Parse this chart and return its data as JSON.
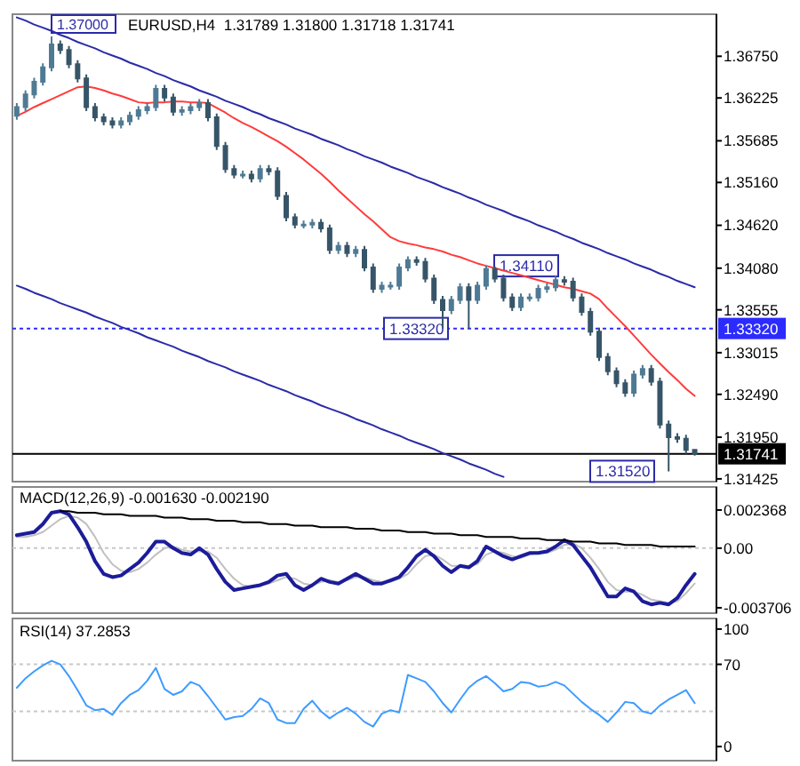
{
  "chart_data": [
    {
      "type": "candlestick",
      "title": "EURUSD,H4  1.31789 1.31800 1.31718 1.31741",
      "tick_labels": "y",
      "colors": [
        "#4f7a94",
        "#4f7a94",
        "#4f7a94",
        "#4f7a94",
        "#4f7a94",
        "#375568",
        "#375568",
        "#375568",
        "#375568",
        "#375568",
        "#375568",
        "#375568",
        "#4f7a94",
        "#4f7a94",
        "#4f7a94",
        "#4f7a94",
        "#4f7a94",
        "#375568",
        "#375568",
        "#4f7a94",
        "#4f7a94",
        "#4f7a94",
        "#375568",
        "#375568",
        "#375568",
        "#375568",
        "#4f7a94",
        "#375568",
        "#4f7a94",
        "#375568",
        "#375568",
        "#375568",
        "#375568",
        "#4f7a94",
        "#4f7a94",
        "#375568",
        "#375568",
        "#4f7a94",
        "#375568",
        "#4f7a94",
        "#375568",
        "#375568",
        "#4f7a94",
        "#4f7a94",
        "#4f7a94",
        "#4f7a94",
        "#375568",
        "#375568",
        "#375568",
        "#375568",
        "#4f7a94",
        "#4f7a94",
        "#375568",
        "#4f7a94",
        "#4f7a94",
        "#375568",
        "#375568",
        "#375568",
        "#4f7a94",
        "#4f7a94",
        "#4f7a94",
        "#4f7a94",
        "#4f7a94",
        "#375568",
        "#375568",
        "#375568",
        "#375568",
        "#375568",
        "#375568",
        "#375568",
        "#375568",
        "#4f7a94",
        "#4f7a94",
        "#375568",
        "#375568",
        "#375568",
        "#375568",
        "#375568",
        "#375568"
      ],
      "categories": [
        null,
        null,
        null,
        null,
        null,
        null,
        null,
        null,
        null,
        null,
        null,
        null,
        null,
        null,
        null,
        null,
        null,
        null,
        null,
        null,
        null,
        null,
        null,
        null,
        null,
        null,
        null,
        null,
        null,
        null,
        null,
        null,
        null,
        null,
        null,
        null,
        null,
        null,
        null,
        null,
        null,
        null,
        null,
        null,
        null,
        null,
        null,
        null,
        null,
        null,
        null,
        null,
        null,
        null,
        null,
        null,
        null,
        null,
        null,
        null,
        null,
        null,
        null,
        null,
        null,
        null,
        null,
        null,
        null,
        null,
        null,
        null,
        null,
        null,
        null,
        null,
        null,
        null,
        null
      ],
      "ohlc": [
        [
          1.36,
          1.3616,
          1.3595,
          1.3611
        ],
        [
          1.3611,
          1.3632,
          1.3606,
          1.3627
        ],
        [
          1.3627,
          1.3648,
          1.3622,
          1.3643
        ],
        [
          1.3643,
          1.3666,
          1.3638,
          1.3661
        ],
        [
          1.3661,
          1.37,
          1.3656,
          1.369
        ],
        [
          1.369,
          1.3695,
          1.3678,
          1.3683
        ],
        [
          1.3683,
          1.3688,
          1.366,
          1.3665
        ],
        [
          1.3665,
          1.367,
          1.3642,
          1.3647
        ],
        [
          1.3647,
          1.3652,
          1.3606,
          1.3611
        ],
        [
          1.3611,
          1.3616,
          1.3593,
          1.3598
        ],
        [
          1.3598,
          1.3603,
          1.3588,
          1.3593
        ],
        [
          1.3593,
          1.3598,
          1.3584,
          1.3589
        ],
        [
          1.3589,
          1.3598,
          1.3584,
          1.3593
        ],
        [
          1.3593,
          1.3605,
          1.3588,
          1.36
        ],
        [
          1.36,
          1.3612,
          1.3595,
          1.3607
        ],
        [
          1.3607,
          1.3616,
          1.3602,
          1.3611
        ],
        [
          1.3611,
          1.3639,
          1.3606,
          1.3634
        ],
        [
          1.3634,
          1.3639,
          1.3618,
          1.3623
        ],
        [
          1.3623,
          1.3628,
          1.36,
          1.3605
        ],
        [
          1.3605,
          1.3612,
          1.36,
          1.3607
        ],
        [
          1.3607,
          1.3616,
          1.3602,
          1.3611
        ],
        [
          1.3611,
          1.3621,
          1.3606,
          1.3616
        ],
        [
          1.3616,
          1.3621,
          1.3593,
          1.3598
        ],
        [
          1.3598,
          1.3603,
          1.3557,
          1.3562
        ],
        [
          1.3562,
          1.3567,
          1.3528,
          1.3533
        ],
        [
          1.3533,
          1.3538,
          1.3521,
          1.3526
        ],
        [
          1.3526,
          1.3531,
          1.3521,
          1.3526
        ],
        [
          1.3526,
          1.3531,
          1.3516,
          1.3521
        ],
        [
          1.3521,
          1.3538,
          1.3516,
          1.3533
        ],
        [
          1.3533,
          1.3538,
          1.3525,
          1.353
        ],
        [
          1.353,
          1.3535,
          1.3494,
          1.3499
        ],
        [
          1.3499,
          1.3504,
          1.3467,
          1.3472
        ],
        [
          1.3472,
          1.3477,
          1.3458,
          1.3463
        ],
        [
          1.3463,
          1.3468,
          1.3458,
          1.3463
        ],
        [
          1.3463,
          1.347,
          1.3458,
          1.3465
        ],
        [
          1.3465,
          1.347,
          1.3453,
          1.3458
        ],
        [
          1.3458,
          1.3463,
          1.3426,
          1.3431
        ],
        [
          1.3431,
          1.3441,
          1.3426,
          1.3436
        ],
        [
          1.3436,
          1.3441,
          1.3422,
          1.3427
        ],
        [
          1.3427,
          1.3436,
          1.3422,
          1.3431
        ],
        [
          1.3431,
          1.3436,
          1.3404,
          1.3409
        ],
        [
          1.3409,
          1.3414,
          1.3377,
          1.3382
        ],
        [
          1.3382,
          1.3391,
          1.3377,
          1.3386
        ],
        [
          1.3386,
          1.3391,
          1.3381,
          1.3386
        ],
        [
          1.3386,
          1.3414,
          1.3381,
          1.3409
        ],
        [
          1.3409,
          1.3423,
          1.3404,
          1.3418
        ],
        [
          1.3418,
          1.3423,
          1.3411,
          1.3416
        ],
        [
          1.3416,
          1.3421,
          1.339,
          1.3395
        ],
        [
          1.3395,
          1.34,
          1.3363,
          1.3368
        ],
        [
          1.3368,
          1.3373,
          1.3332,
          1.3355
        ],
        [
          1.3355,
          1.3373,
          1.335,
          1.3368
        ],
        [
          1.3368,
          1.3389,
          1.3363,
          1.3384
        ],
        [
          1.3384,
          1.3389,
          1.3332,
          1.3368
        ],
        [
          1.3368,
          1.3391,
          1.3363,
          1.3386
        ],
        [
          1.3386,
          1.3411,
          1.3381,
          1.3407
        ],
        [
          1.3407,
          1.341,
          1.339,
          1.3395
        ],
        [
          1.3395,
          1.34,
          1.3366,
          1.3371
        ],
        [
          1.3371,
          1.3376,
          1.3354,
          1.3359
        ],
        [
          1.3359,
          1.3376,
          1.3354,
          1.3371
        ],
        [
          1.3371,
          1.3376,
          1.3366,
          1.3371
        ],
        [
          1.3371,
          1.3387,
          1.3366,
          1.3382
        ],
        [
          1.3382,
          1.3389,
          1.3377,
          1.3384
        ],
        [
          1.3384,
          1.3398,
          1.3379,
          1.3393
        ],
        [
          1.3393,
          1.3398,
          1.3386,
          1.3391
        ],
        [
          1.3391,
          1.3396,
          1.3366,
          1.3371
        ],
        [
          1.3371,
          1.3376,
          1.3348,
          1.3353
        ],
        [
          1.3353,
          1.3358,
          1.3323,
          1.3328
        ],
        [
          1.3328,
          1.3333,
          1.3291,
          1.3296
        ],
        [
          1.3296,
          1.3301,
          1.3273,
          1.3278
        ],
        [
          1.3278,
          1.3283,
          1.3258,
          1.3263
        ],
        [
          1.3263,
          1.3268,
          1.3246,
          1.3251
        ],
        [
          1.3251,
          1.3279,
          1.3246,
          1.3274
        ],
        [
          1.3274,
          1.3286,
          1.3269,
          1.3281
        ],
        [
          1.3281,
          1.3286,
          1.326,
          1.3265
        ],
        [
          1.3265,
          1.327,
          1.3206,
          1.3211
        ],
        [
          1.3211,
          1.3216,
          1.3152,
          1.3195
        ],
        [
          1.3195,
          1.32,
          1.3188,
          1.3193
        ],
        [
          1.3193,
          1.3198,
          1.3174,
          1.3179
        ],
        [
          1.31789,
          1.318,
          1.31718,
          1.31741
        ]
      ],
      "series": [
        {
          "type": "line",
          "color": "#ff3b3b",
          "values": [
            1.36,
            1.3605,
            1.3611,
            1.3616,
            1.3621,
            1.3626,
            1.3631,
            1.3636,
            1.3637,
            1.3635,
            1.3632,
            1.3628,
            1.3625,
            1.3621,
            1.3617,
            1.3616,
            1.3617,
            1.3617,
            1.3618,
            1.3618,
            1.3617,
            1.3617,
            1.3616,
            1.361,
            1.3604,
            1.3597,
            1.3591,
            1.3586,
            1.358,
            1.3574,
            1.3568,
            1.3561,
            1.3553,
            1.3545,
            1.3536,
            1.3527,
            1.3517,
            1.3506,
            1.3496,
            1.3486,
            1.3476,
            1.3467,
            1.3457,
            1.3447,
            1.3442,
            1.3439,
            1.3437,
            1.3434,
            1.3432,
            1.3429,
            1.3425,
            1.3422,
            1.3418,
            1.3414,
            1.3411,
            1.3408,
            1.3405,
            1.3402,
            1.3399,
            1.3396,
            1.3393,
            1.339,
            1.3387,
            1.3384,
            1.3382,
            1.3379,
            1.3376,
            1.3369,
            1.3357,
            1.3346,
            1.3335,
            1.3323,
            1.3311,
            1.3299,
            1.3288,
            1.3277,
            1.3267,
            1.3256,
            1.3247
          ]
        },
        {
          "type": "line",
          "color": "#2b2ba8",
          "values": [
            1.3724,
            1.372,
            1.3715,
            1.3711,
            1.3707,
            1.3702,
            1.3698,
            1.3693,
            1.3689,
            1.3685,
            1.368,
            1.3676,
            1.3672,
            1.3667,
            1.3663,
            1.3659,
            1.3654,
            1.365,
            1.3645,
            1.3641,
            1.3637,
            1.3632,
            1.3628,
            1.3624,
            1.3619,
            1.3615,
            1.3611,
            1.3606,
            1.3602,
            1.3597,
            1.3593,
            1.3589,
            1.3584,
            1.358,
            1.3576,
            1.3571,
            1.3567,
            1.3563,
            1.3558,
            1.3554,
            1.3549,
            1.3545,
            1.3541,
            1.3536,
            1.3532,
            1.3528,
            1.3523,
            1.3519,
            1.3515,
            1.351,
            1.3506,
            1.3502,
            1.3497,
            1.3493,
            1.3488,
            1.3484,
            1.348,
            1.3475,
            1.3471,
            1.3467,
            1.3462,
            1.3458,
            1.3454,
            1.3449,
            1.3445,
            1.344,
            1.3436,
            1.3432,
            1.3427,
            1.3423,
            1.3419,
            1.3414,
            1.341,
            1.3406,
            1.3401,
            1.3397,
            1.3392,
            1.3388,
            1.3384
          ]
        },
        {
          "type": "line",
          "color": "#2b2ba8",
          "values": [
            1.3386,
            1.3382,
            1.3377,
            1.3373,
            1.3369,
            1.3364,
            1.336,
            1.3356,
            1.3352,
            1.3347,
            1.3343,
            1.3339,
            1.3334,
            1.333,
            1.3326,
            1.3321,
            1.3317,
            1.3313,
            1.3309,
            1.3304,
            1.33,
            1.3296,
            1.3291,
            1.3287,
            1.3283,
            1.3278,
            1.3274,
            1.327,
            1.3266,
            1.3261,
            1.3257,
            1.3253,
            1.3248,
            1.3244,
            1.324,
            1.3235,
            1.3231,
            1.3227,
            1.3223,
            1.3218,
            1.3214,
            1.321,
            1.3205,
            1.3201,
            1.3197,
            1.3192,
            1.3188,
            1.3184,
            1.318,
            1.3175,
            1.3171,
            1.3167,
            1.3162,
            1.3158,
            1.3154,
            1.3149,
            1.3145,
            null,
            null,
            null,
            null,
            null,
            null,
            null,
            null,
            null,
            null,
            null,
            null,
            null,
            null,
            null,
            null,
            null,
            null,
            null,
            null,
            null,
            null
          ]
        }
      ],
      "ylim": [
        1.3139,
        1.3728
      ],
      "yticks": [
        {
          "value": 1.3675,
          "label": "1.36750"
        },
        {
          "value": 1.36225,
          "label": "1.36225"
        },
        {
          "value": 1.35685,
          "label": "1.35685"
        },
        {
          "value": 1.3516,
          "label": "1.35160"
        },
        {
          "value": 1.3462,
          "label": "1.34620"
        },
        {
          "value": 1.3408,
          "label": "1.34080"
        },
        {
          "value": 1.33555,
          "label": "1.33555"
        },
        {
          "value": 1.33015,
          "label": "1.33015"
        },
        {
          "value": 1.3249,
          "label": "1.32490"
        },
        {
          "value": 1.3195,
          "label": "1.31950"
        },
        {
          "value": 1.31425,
          "label": "1.31425"
        }
      ],
      "ref_lines": [
        {
          "axis": "y",
          "value": 1.3332,
          "label": "1.33320",
          "color": "#2b2bff",
          "line_style": "dotted"
        },
        {
          "axis": "y",
          "value": 1.31741,
          "label": "1.31741",
          "color": "#000000",
          "line_style": "solid"
        }
      ],
      "annotations": [
        {
          "text": "1.37000",
          "y": 1.37
        },
        {
          "text": "1.33320",
          "y": 1.3332
        },
        {
          "text": "1.34110",
          "y": 1.3411
        },
        {
          "text": "1.31520",
          "y": 1.3152
        }
      ]
    },
    {
      "type": "line",
      "title": "MACD(12,26,9) -0.001630 -0.002190",
      "tick_labels": "y",
      "categories": [
        null,
        null,
        null,
        null,
        null,
        null,
        null,
        null,
        null,
        null,
        null,
        null,
        null,
        null,
        null,
        null,
        null,
        null,
        null,
        null,
        null,
        null,
        null,
        null,
        null,
        null,
        null,
        null,
        null,
        null,
        null,
        null,
        null,
        null,
        null,
        null,
        null,
        null,
        null,
        null,
        null,
        null,
        null,
        null,
        null,
        null,
        null,
        null,
        null,
        null,
        null,
        null,
        null,
        null,
        null,
        null,
        null,
        null,
        null,
        null,
        null,
        null,
        null,
        null,
        null,
        null,
        null,
        null,
        null,
        null,
        null,
        null,
        null,
        null,
        null,
        null,
        null,
        null,
        null
      ],
      "series": [
        {
          "color": "#c0c0c0",
          "values": [
            0.0007,
            0.0007,
            0.0008,
            0.001,
            0.0014,
            0.0018,
            0.002,
            0.0019,
            0.0015,
            0.0007,
            -0.0003,
            -0.001,
            -0.0014,
            -0.0015,
            -0.0013,
            -0.0009,
            -0.0004,
            0,
            0.0001,
            -0.0001,
            -0.0002,
            -0.0002,
            -0.0002,
            -0.0006,
            -0.0013,
            -0.0019,
            -0.0023,
            -0.0024,
            -0.0023,
            -0.0022,
            -0.002,
            -0.0018,
            -0.0019,
            -0.0022,
            -0.0023,
            -0.0021,
            -0.002,
            -0.0021,
            -0.002,
            -0.0018,
            -0.0018,
            -0.002,
            -0.0021,
            -0.0021,
            -0.0019,
            -0.0016,
            -0.001,
            -0.0005,
            -0.0004,
            -0.0007,
            -0.0011,
            -0.0011,
            -0.0011,
            -0.001,
            -0.0004,
            -0.0002,
            -0.0003,
            -0.0005,
            -0.0006,
            -0.0004,
            -0.0003,
            -0.0003,
            -0.0001,
            0.0002,
            0.0003,
            0,
            -0.0006,
            -0.0013,
            -0.0021,
            -0.0026,
            -0.0027,
            -0.0027,
            -0.0029,
            -0.0032,
            -0.0033,
            -0.0034,
            -0.0033,
            -0.0028,
            -0.0022
          ]
        },
        {
          "color": "#1c1c9a",
          "values": [
            0.0008,
            0.0009,
            0.001,
            0.0015,
            0.0022,
            0.0023,
            0.0021,
            0.0013,
            0.0004,
            -0.0008,
            -0.0016,
            -0.0018,
            -0.0017,
            -0.0013,
            -0.0009,
            -0.0003,
            0.0004,
            0.0004,
            0,
            -0.0003,
            -0.0004,
            0,
            -0.0004,
            -0.0013,
            -0.0021,
            -0.0026,
            -0.0025,
            -0.0024,
            -0.0023,
            -0.0021,
            -0.0017,
            -0.0016,
            -0.0023,
            -0.0026,
            -0.0023,
            -0.0019,
            -0.0021,
            -0.0022,
            -0.0019,
            -0.0016,
            -0.0019,
            -0.0022,
            -0.0022,
            -0.002,
            -0.0018,
            -0.0012,
            -0.0005,
            -0.0001,
            -0.0005,
            -0.0011,
            -0.0015,
            -0.0011,
            -0.0012,
            -0.0008,
            0.0001,
            -0.0002,
            -0.0005,
            -0.0007,
            -0.0005,
            -0.0003,
            -0.0003,
            -0.0002,
            0.0001,
            0.0005,
            0.0002,
            -0.0005,
            -0.0012,
            -0.0021,
            -0.003,
            -0.003,
            -0.0025,
            -0.0027,
            -0.0033,
            -0.0035,
            -0.0034,
            -0.0035,
            -0.0031,
            -0.0023,
            -0.0016
          ]
        },
        {
          "color": "#000000",
          "values": [
            null,
            null,
            null,
            null,
            null,
            0.0023,
            0.0023,
            0.0022,
            0.0022,
            0.0022,
            0.0021,
            0.0021,
            0.0021,
            0.002,
            0.002,
            0.002,
            0.002,
            0.0019,
            0.0019,
            0.0019,
            0.0018,
            0.0018,
            0.0018,
            0.0017,
            0.0017,
            0.0017,
            0.0016,
            0.0016,
            0.0016,
            0.0015,
            0.0015,
            0.0015,
            0.0014,
            0.0014,
            0.0014,
            0.0013,
            0.0013,
            0.0013,
            0.0013,
            0.0012,
            0.0012,
            0.0012,
            0.0011,
            0.0011,
            0.0011,
            0.001,
            0.001,
            0.001,
            0.0009,
            0.0009,
            0.0009,
            0.0008,
            0.0008,
            0.0008,
            0.0007,
            0.0007,
            0.0007,
            0.0007,
            0.0006,
            0.0006,
            0.0006,
            0.0005,
            0.0005,
            0.0005,
            0.0004,
            0.0004,
            0.0004,
            0.0003,
            0.0003,
            0.0003,
            0.0002,
            0.0002,
            0.0002,
            0.0002,
            0.0001,
            0.0001,
            0.0001,
            0.0001,
            0.0001
          ]
        }
      ],
      "ylim": [
        -0.00404,
        0.0038
      ],
      "yticks": [
        0.002368,
        {
          "value": 0,
          "label": "0.00"
        },
        -0.003706
      ],
      "ref_lines": [
        {
          "axis": "y",
          "value": 0,
          "color": "#c8c8c8",
          "line_style": "dotted"
        }
      ]
    },
    {
      "type": "line",
      "title": "RSI(14) 37.2853",
      "tick_labels": "y",
      "categories": [
        null,
        null,
        null,
        null,
        null,
        null,
        null,
        null,
        null,
        null,
        null,
        null,
        null,
        null,
        null,
        null,
        null,
        null,
        null,
        null,
        null,
        null,
        null,
        null,
        null,
        null,
        null,
        null,
        null,
        null,
        null,
        null,
        null,
        null,
        null,
        null,
        null,
        null,
        null,
        null,
        null,
        null,
        null,
        null,
        null,
        null,
        null,
        null,
        null,
        null,
        null,
        null,
        null,
        null,
        null,
        null,
        null,
        null,
        null,
        null,
        null,
        null,
        null,
        null,
        null,
        null,
        null,
        null,
        null,
        null,
        null,
        null,
        null,
        null,
        null,
        null,
        null,
        null,
        null
      ],
      "series": [
        {
          "color": "#3d9bff",
          "values": [
            50,
            58,
            64,
            69,
            73,
            70,
            60,
            48,
            35,
            31,
            32,
            27,
            37,
            44,
            48,
            56,
            67,
            49,
            44,
            47,
            55,
            52,
            43,
            33,
            23,
            25,
            26,
            32,
            41,
            37,
            23,
            20,
            20,
            32,
            39,
            30,
            24,
            29,
            33,
            28,
            21,
            17,
            28,
            31,
            29,
            61,
            58,
            55,
            47,
            37,
            29,
            40,
            50,
            56,
            60,
            54,
            47,
            49,
            55,
            54,
            51,
            52,
            55,
            52,
            45,
            38,
            32,
            27,
            21,
            29,
            38,
            37,
            30,
            28,
            35,
            40,
            44,
            48,
            37
          ]
        }
      ],
      "ylim": [
        -12,
        109
      ],
      "yticks": [
        0,
        70,
        100
      ],
      "ref_lines": [
        {
          "axis": "y",
          "value": 70,
          "color": "#c8c8c8",
          "line_style": "dotted"
        },
        {
          "axis": "y",
          "value": 30,
          "color": "#c8c8c8",
          "line_style": "dotted"
        }
      ]
    }
  ]
}
